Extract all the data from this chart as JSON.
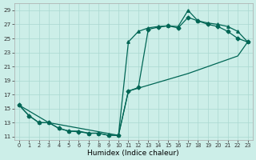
{
  "xlabel": "Humidex (Indice chaleur)",
  "xlim": [
    -0.5,
    23.5
  ],
  "ylim": [
    10.5,
    30.0
  ],
  "xticks": [
    0,
    1,
    2,
    3,
    4,
    5,
    6,
    7,
    8,
    9,
    10,
    11,
    12,
    13,
    14,
    15,
    16,
    17,
    18,
    19,
    20,
    21,
    22,
    23
  ],
  "yticks": [
    11,
    13,
    15,
    17,
    19,
    21,
    23,
    25,
    27,
    29
  ],
  "bg_color": "#cceee8",
  "line_color": "#006655",
  "grid_color": "#aad8d0",
  "curve1_x": [
    0,
    1,
    2,
    3,
    4,
    5,
    6,
    7,
    8,
    9,
    10,
    11,
    12,
    13,
    14,
    15,
    16,
    17,
    18,
    19,
    20,
    21,
    22,
    23
  ],
  "curve1_y": [
    15.5,
    14.0,
    13.0,
    13.0,
    12.2,
    11.8,
    11.8,
    11.5,
    11.5,
    11.2,
    11.2,
    24.5,
    26.0,
    26.5,
    26.7,
    26.8,
    26.7,
    29.0,
    27.5,
    27.2,
    27.0,
    26.7,
    26.0,
    24.5
  ],
  "curve1_marker": "^",
  "curve2_x": [
    0,
    1,
    2,
    3,
    4,
    5,
    6,
    7,
    8,
    9,
    10,
    11,
    12,
    13,
    14,
    15,
    16,
    17,
    18,
    19,
    20,
    21,
    22,
    23
  ],
  "curve2_y": [
    15.5,
    14.0,
    13.0,
    13.0,
    12.2,
    11.8,
    11.7,
    11.5,
    11.5,
    11.2,
    11.2,
    17.5,
    18.0,
    26.3,
    26.6,
    26.8,
    26.5,
    28.0,
    27.5,
    27.0,
    26.7,
    26.0,
    25.0,
    24.5
  ],
  "curve2_marker": "D",
  "curve3_x": [
    0,
    3,
    10,
    11,
    17,
    20,
    21,
    22,
    23
  ],
  "curve3_y": [
    15.5,
    13.0,
    11.2,
    17.5,
    20.0,
    21.5,
    22.0,
    22.5,
    24.5
  ]
}
